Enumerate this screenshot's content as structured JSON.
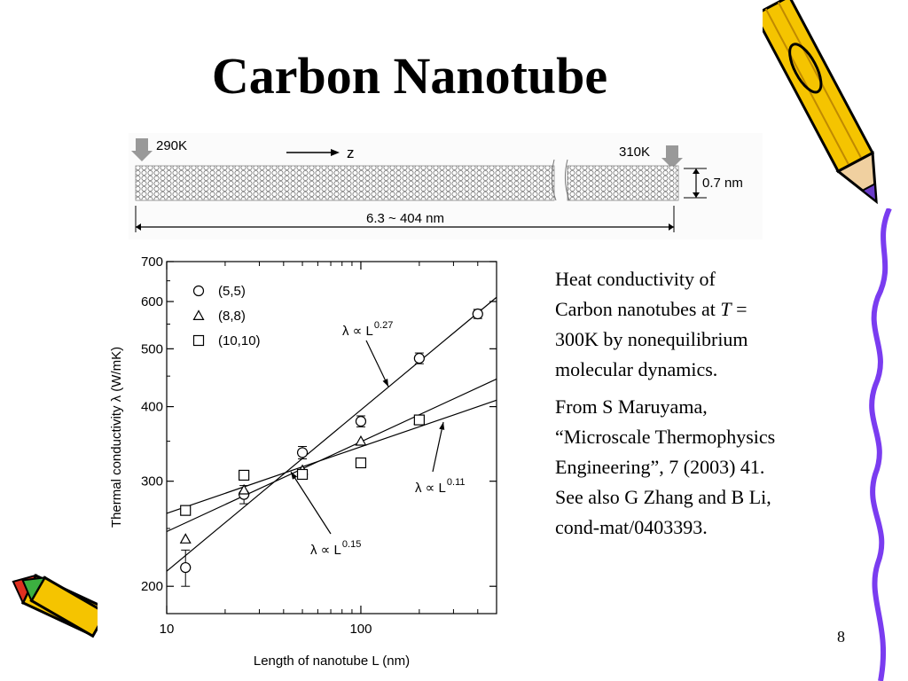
{
  "slide": {
    "title": "Carbon Nanotube",
    "page_number": "8"
  },
  "tube_diagram": {
    "left_temp": "290K",
    "right_temp": "310K",
    "axis_label": "z",
    "diameter": "0.7 nm",
    "length_range": "6.3 ~ 404 nm"
  },
  "text": {
    "para1_line1": "Heat conductivity of",
    "para1_line2a": "Carbon nanotubes at ",
    "para1_T": "T",
    "para1_line2b": " =",
    "para1_line3": "300K by nonequilibrium",
    "para1_line4": "molecular dynamics.",
    "para2_line1": "From S Maruyama,",
    "para2_line2": "“Microscale Thermophysics",
    "para2_line3": "Engineering”, 7 (2003) 41.",
    "para2_line4": "See also G Zhang and B Li,",
    "para2_line5": "cond-mat/0403393."
  },
  "colors": {
    "pencil_body": "#f5c400",
    "pencil_outline": "#000000",
    "pencil_accent": "#e03020",
    "wavy_line": "#7a3cf0"
  },
  "chart_data": {
    "type": "scatter",
    "xlabel": "Length of nanotube L (nm)",
    "ylabel": "Thermal conductivity λ (W/mK)",
    "x_scale": "log",
    "y_scale": "log",
    "xlim": [
      10,
      500
    ],
    "ylim": [
      180,
      700
    ],
    "x_ticks": [
      10,
      100
    ],
    "x_tick_labels": [
      "10",
      "100"
    ],
    "y_ticks": [
      200,
      300,
      400,
      500,
      600,
      700
    ],
    "y_tick_labels": [
      "200",
      "300",
      "400",
      "500",
      "600",
      "700"
    ],
    "grid": false,
    "legend_position": "top-left",
    "series": [
      {
        "name": "(5,5)",
        "marker": "circle",
        "points": [
          [
            12.5,
            215
          ],
          [
            25,
            285
          ],
          [
            50,
            335
          ],
          [
            100,
            378
          ],
          [
            200,
            482
          ],
          [
            400,
            572
          ]
        ],
        "error": [
          15,
          10,
          8,
          8,
          10,
          10
        ]
      },
      {
        "name": "(8,8)",
        "marker": "triangle",
        "points": [
          [
            12.5,
            240
          ],
          [
            25,
            290
          ],
          [
            50,
            313
          ],
          [
            100,
            350
          ],
          [
            200,
            380
          ]
        ],
        "error": [
          0,
          0,
          0,
          0,
          0
        ]
      },
      {
        "name": "(10,10)",
        "marker": "square",
        "points": [
          [
            12.5,
            268
          ],
          [
            25,
            307
          ],
          [
            50,
            308
          ],
          [
            100,
            322
          ],
          [
            200,
            380
          ]
        ],
        "error": [
          0,
          0,
          0,
          0,
          0
        ]
      }
    ],
    "fit_lines": [
      {
        "label": "λ ∝ L",
        "exponent": "0.27",
        "from": [
          10,
          212
        ],
        "to": [
          500,
          610
        ]
      },
      {
        "label": "λ ∝ L",
        "exponent": "0.15",
        "from": [
          10,
          247
        ],
        "to": [
          500,
          445
        ]
      },
      {
        "label": "λ ∝ L",
        "exponent": "0.11",
        "from": [
          10,
          265
        ],
        "to": [
          500,
          410
        ]
      }
    ]
  }
}
